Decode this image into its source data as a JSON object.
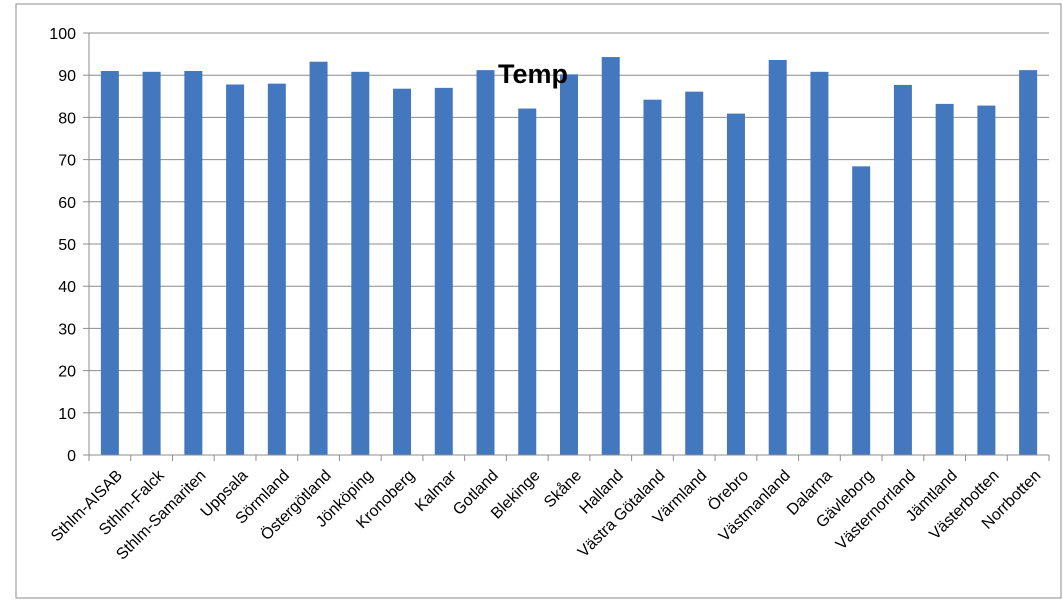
{
  "chart_data": {
    "type": "bar",
    "title": "Temp",
    "xlabel": "",
    "ylabel": "",
    "ylim": [
      0,
      100
    ],
    "yticks": [
      0,
      10,
      20,
      30,
      40,
      50,
      60,
      70,
      80,
      90,
      100
    ],
    "grid": true,
    "legend": "none",
    "bar_color": "#4478be",
    "categories": [
      "Sthlm-AISAB",
      "Sthlm-Falck",
      "Sthlm-Samariten",
      "Uppsala",
      "Sörmland",
      "Östergötland",
      "Jönköping",
      "Kronoberg",
      "Kalmar",
      "Gotland",
      "Blekinge",
      "Skåne",
      "Halland",
      "Västra Götaland",
      "Värmland",
      "Örebro",
      "Västmanland",
      "Dalarna",
      "Gävleborg",
      "Västernorrland",
      "Jämtland",
      "Västerbotten",
      "Norrbotten"
    ],
    "values": [
      91,
      90.8,
      91,
      87.8,
      88,
      93.2,
      90.8,
      86.8,
      87,
      91.2,
      82.1,
      90.2,
      94.3,
      84.2,
      86.1,
      80.9,
      93.6,
      90.8,
      68.4,
      87.7,
      83.2,
      82.8,
      91.2
    ]
  }
}
